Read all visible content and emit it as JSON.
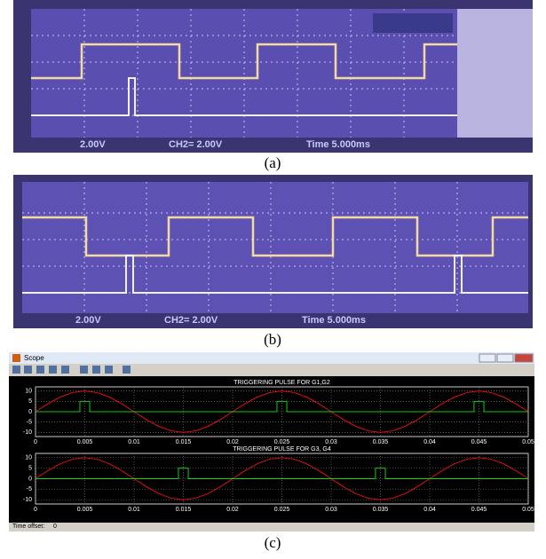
{
  "panels": [
    {
      "label": "(a)",
      "readouts": [
        "2.00V",
        "CH2= 2.00V",
        "Time 5.000ms"
      ]
    },
    {
      "label": "(b)",
      "readouts": [
        "2.00V",
        "CH2= 2.00V",
        "Time 5.000ms"
      ]
    }
  ],
  "scope": {
    "window_title": "Scope",
    "time_offset_label": "Time offset:",
    "time_offset_value": "0",
    "caption": "(c)"
  },
  "chart_data": [
    {
      "type": "line",
      "title": "TRIGGERING PULSE FOR G1,G2",
      "xlim": [
        0,
        0.05
      ],
      "ylim": [
        -12,
        12
      ],
      "xticks": [
        0,
        0.005,
        0.01,
        0.015,
        0.02,
        0.025,
        0.03,
        0.035,
        0.04,
        0.045,
        0.05
      ],
      "yticks": [
        10,
        5,
        0,
        -5,
        -10
      ],
      "grid": true,
      "series": [
        {
          "color": "#e01010",
          "x": [
            0,
            0.00125,
            0.0025,
            0.00375,
            0.005,
            0.00625,
            0.0075,
            0.00875,
            0.01,
            0.01125,
            0.0125,
            0.01375,
            0.015,
            0.01625,
            0.0175,
            0.01875,
            0.02,
            0.02125,
            0.0225,
            0.02375,
            0.025,
            0.02625,
            0.0275,
            0.02875,
            0.03,
            0.03125,
            0.0325,
            0.03375,
            0.035,
            0.03625,
            0.0375,
            0.03875,
            0.04,
            0.04125,
            0.0425,
            0.04375,
            0.045,
            0.04625,
            0.0475,
            0.04875,
            0.05
          ],
          "values": [
            0,
            3.83,
            7.07,
            9.24,
            10,
            9.24,
            7.07,
            3.83,
            0,
            -3.83,
            -7.07,
            -9.24,
            -10,
            -9.24,
            -7.07,
            -3.83,
            0,
            3.83,
            7.07,
            9.24,
            10,
            9.24,
            7.07,
            3.83,
            0,
            -3.83,
            -7.07,
            -9.24,
            -10,
            -9.24,
            -7.07,
            -3.83,
            0,
            3.83,
            7.07,
            9.24,
            10,
            9.24,
            7.07,
            3.83,
            0
          ]
        },
        {
          "color": "#10d010",
          "x": [
            0,
            0.0045,
            0.0045,
            0.0055,
            0.0055,
            0.0245,
            0.0245,
            0.0255,
            0.0255,
            0.0445,
            0.0445,
            0.0455,
            0.0455,
            0.05
          ],
          "values": [
            0,
            0,
            5,
            5,
            0,
            0,
            5,
            5,
            0,
            0,
            5,
            5,
            0,
            0
          ]
        }
      ]
    },
    {
      "type": "line",
      "title": "TRIGGERING PULSE FOR G3, G4",
      "xlim": [
        0,
        0.05
      ],
      "ylim": [
        -12,
        12
      ],
      "xticks": [
        0,
        0.005,
        0.01,
        0.015,
        0.02,
        0.025,
        0.03,
        0.035,
        0.04,
        0.045,
        0.05
      ],
      "yticks": [
        10,
        5,
        0,
        -5,
        -10
      ],
      "grid": true,
      "series": [
        {
          "color": "#e01010",
          "x": [
            0,
            0.00125,
            0.0025,
            0.00375,
            0.005,
            0.00625,
            0.0075,
            0.00875,
            0.01,
            0.01125,
            0.0125,
            0.01375,
            0.015,
            0.01625,
            0.0175,
            0.01875,
            0.02,
            0.02125,
            0.0225,
            0.02375,
            0.025,
            0.02625,
            0.0275,
            0.02875,
            0.03,
            0.03125,
            0.0325,
            0.03375,
            0.035,
            0.03625,
            0.0375,
            0.03875,
            0.04,
            0.04125,
            0.0425,
            0.04375,
            0.045,
            0.04625,
            0.0475,
            0.04875,
            0.05
          ],
          "values": [
            0,
            3.83,
            7.07,
            9.24,
            10,
            9.24,
            7.07,
            3.83,
            0,
            -3.83,
            -7.07,
            -9.24,
            -10,
            -9.24,
            -7.07,
            -3.83,
            0,
            3.83,
            7.07,
            9.24,
            10,
            9.24,
            7.07,
            3.83,
            0,
            -3.83,
            -7.07,
            -9.24,
            -10,
            -9.24,
            -7.07,
            -3.83,
            0,
            3.83,
            7.07,
            9.24,
            10,
            9.24,
            7.07,
            3.83,
            0
          ]
        },
        {
          "color": "#10d010",
          "x": [
            0,
            0.0145,
            0.0145,
            0.0155,
            0.0155,
            0.0345,
            0.0345,
            0.0355,
            0.0355,
            0.05
          ],
          "values": [
            0,
            0,
            5,
            5,
            0,
            0,
            5,
            5,
            0,
            0
          ]
        }
      ]
    }
  ]
}
